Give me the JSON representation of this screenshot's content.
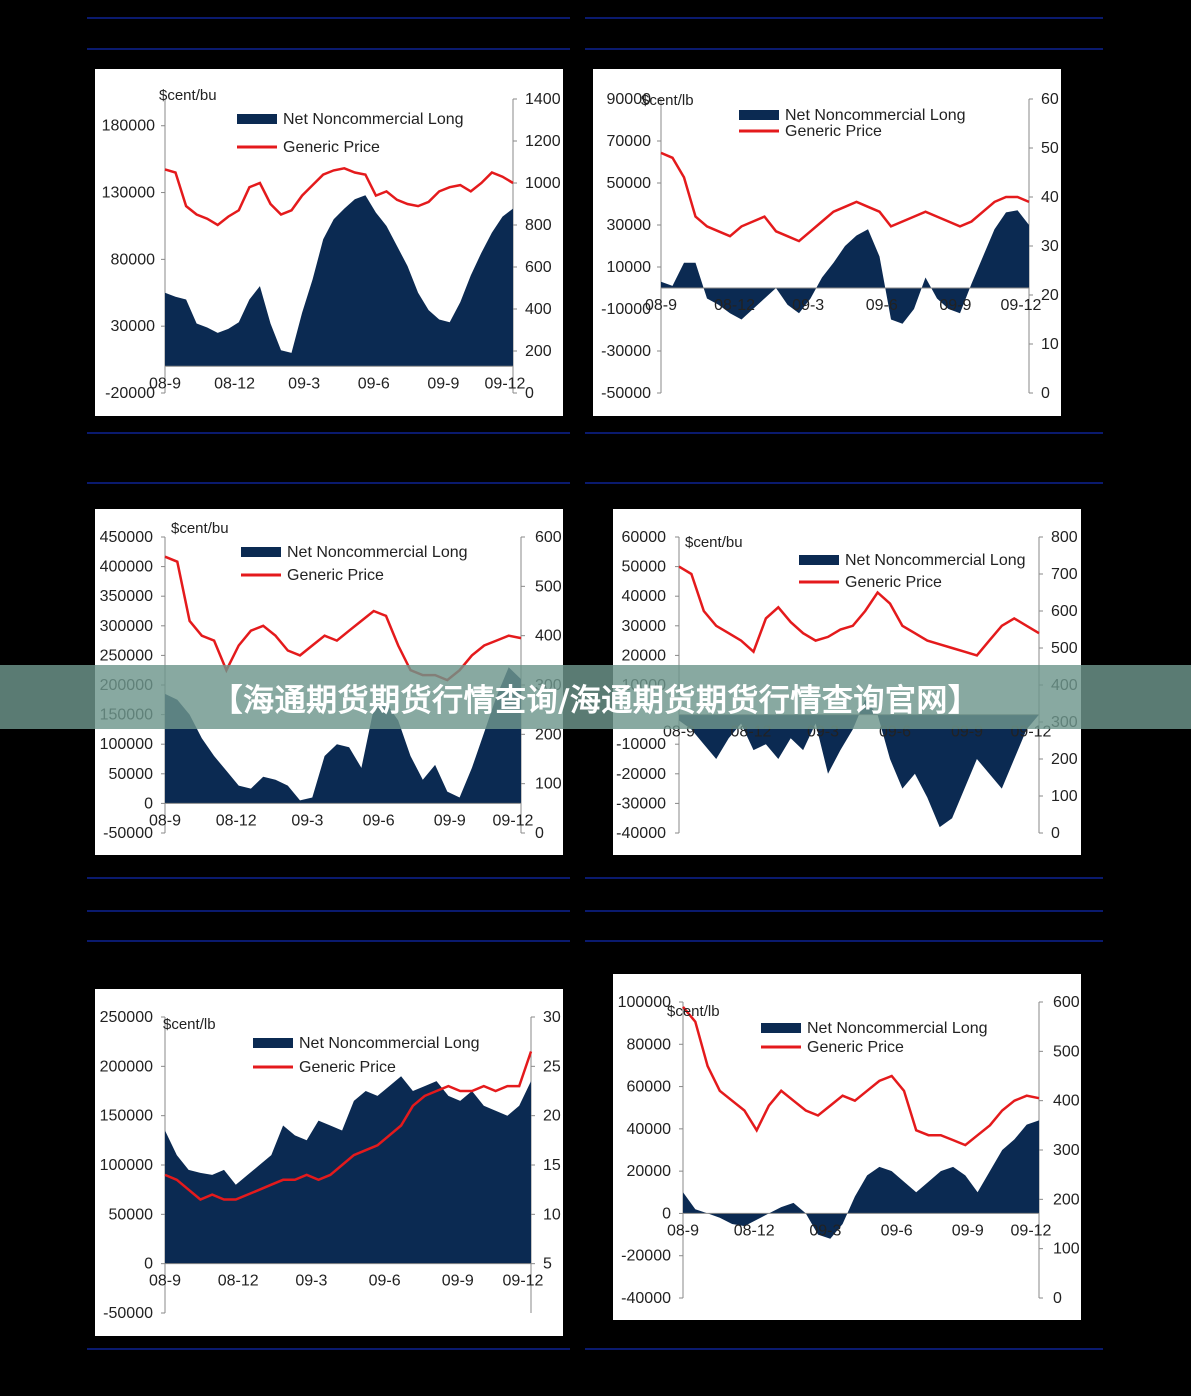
{
  "banner": {
    "title": "【海通期货期货行情查询/海通期货期货行情查询官网】"
  },
  "colors": {
    "area": "#0b2a52",
    "line": "#e41a1c",
    "axis": "#888888",
    "text": "#222222",
    "background": "#000000",
    "rule": "#0a1a6e"
  },
  "chart_data": [
    {
      "type": "area",
      "unit_label": "$cent/bu",
      "legend": [
        "Net Noncommercial Long",
        "Generic Price"
      ],
      "x_tick_labels": [
        "08-9",
        "08-12",
        "09-3",
        "09-6",
        "09-9",
        "09-12"
      ],
      "y_left": {
        "ticks": [
          "-20000",
          "30000",
          "80000",
          "130000",
          "180000"
        ],
        "range": [
          -20000,
          200000
        ]
      },
      "y_right": {
        "ticks": [
          "0",
          "200",
          "400",
          "600",
          "800",
          "1000",
          "1200",
          "1400"
        ],
        "range": [
          0,
          1400
        ]
      },
      "series": [
        {
          "name": "Net Noncommercial Long",
          "kind": "area",
          "values": [
            55000,
            52000,
            50000,
            32000,
            29000,
            25000,
            28000,
            33000,
            50000,
            60000,
            32000,
            12000,
            10000,
            40000,
            65000,
            95000,
            110000,
            118000,
            125000,
            128000,
            115000,
            105000,
            90000,
            75000,
            55000,
            42000,
            35000,
            33000,
            48000,
            68000,
            85000,
            100000,
            112000,
            118000
          ]
        },
        {
          "name": "Generic Price",
          "kind": "line",
          "values": [
            1065,
            1050,
            890,
            850,
            830,
            800,
            840,
            870,
            980,
            1000,
            900,
            850,
            870,
            940,
            990,
            1040,
            1060,
            1070,
            1050,
            1040,
            940,
            960,
            920,
            900,
            890,
            910,
            960,
            980,
            990,
            960,
            1000,
            1050,
            1030,
            1000
          ]
        }
      ]
    },
    {
      "type": "area",
      "unit_label": "$cent/lb",
      "legend": [
        "Net Noncommercial Long",
        "Generic Price"
      ],
      "x_tick_labels": [
        "08-9",
        "08-12",
        "09-3",
        "09-6",
        "09-9",
        "09-12"
      ],
      "y_left": {
        "ticks": [
          "-50000",
          "-30000",
          "-10000",
          "10000",
          "30000",
          "50000",
          "70000",
          "90000"
        ],
        "range": [
          -50000,
          90000
        ]
      },
      "y_right": {
        "ticks": [
          "0",
          "10",
          "20",
          "30",
          "40",
          "50",
          "60"
        ],
        "range": [
          0,
          60
        ]
      },
      "series": [
        {
          "name": "Net Noncommercial Long",
          "kind": "area",
          "values": [
            3000,
            1000,
            12000,
            12000,
            -5000,
            -8000,
            -12000,
            -15000,
            -10000,
            -5000,
            0,
            -8000,
            -12000,
            -5000,
            5000,
            12000,
            20000,
            25000,
            28000,
            15000,
            -15000,
            -17000,
            -10000,
            5000,
            -5000,
            -10000,
            -12000,
            2000,
            15000,
            28000,
            36000,
            37000,
            30000
          ]
        },
        {
          "name": "Generic Price",
          "kind": "line",
          "values": [
            49,
            48,
            44,
            36,
            34,
            33,
            32,
            34,
            35,
            36,
            33,
            32,
            31,
            33,
            35,
            37,
            38,
            39,
            38,
            37,
            34,
            35,
            36,
            37,
            36,
            35,
            34,
            35,
            37,
            39,
            40,
            40,
            39
          ]
        }
      ]
    },
    {
      "type": "area",
      "unit_label": "$cent/bu",
      "legend": [
        "Net Noncommercial Long",
        "Generic Price"
      ],
      "x_tick_labels": [
        "08-9",
        "08-12",
        "09-3",
        "09-6",
        "09-9",
        "09-12"
      ],
      "y_left": {
        "ticks": [
          "-50000",
          "0",
          "50000",
          "100000",
          "150000",
          "200000",
          "250000",
          "300000",
          "350000",
          "400000",
          "450000"
        ],
        "range": [
          -50000,
          450000
        ]
      },
      "y_right": {
        "ticks": [
          "0",
          "100",
          "200",
          "300",
          "400",
          "500",
          "600"
        ],
        "range": [
          0,
          600
        ]
      },
      "series": [
        {
          "name": "Net Noncommercial Long",
          "kind": "area",
          "values": [
            185000,
            175000,
            150000,
            110000,
            80000,
            55000,
            30000,
            25000,
            45000,
            40000,
            30000,
            5000,
            10000,
            80000,
            100000,
            95000,
            60000,
            160000,
            170000,
            140000,
            80000,
            40000,
            65000,
            20000,
            10000,
            60000,
            120000,
            180000,
            230000,
            210000
          ]
        },
        {
          "name": "Generic Price",
          "kind": "line",
          "values": [
            560,
            550,
            430,
            400,
            390,
            330,
            380,
            410,
            420,
            400,
            370,
            360,
            380,
            400,
            390,
            410,
            430,
            450,
            440,
            380,
            330,
            320,
            320,
            310,
            330,
            360,
            380,
            390,
            400,
            395
          ]
        }
      ]
    },
    {
      "type": "area",
      "unit_label": "$cent/bu",
      "legend": [
        "Net Noncommercial Long",
        "Generic Price"
      ],
      "x_tick_labels": [
        "08-9",
        "08-12",
        "09-3",
        "09-6",
        "09-9",
        "09-12"
      ],
      "y_left": {
        "ticks": [
          "-40000",
          "-30000",
          "-20000",
          "-10000",
          "10000",
          "20000",
          "30000",
          "40000",
          "50000",
          "60000"
        ],
        "range": [
          -40000,
          60000
        ]
      },
      "y_right": {
        "ticks": [
          "0",
          "100",
          "200",
          "300",
          "400",
          "500",
          "600",
          "700",
          "800"
        ],
        "range": [
          0,
          800
        ]
      },
      "series": [
        {
          "name": "Net Noncommercial Long",
          "kind": "area",
          "values": [
            -2000,
            -5000,
            -10000,
            -15000,
            -8000,
            -3000,
            -12000,
            -10000,
            -15000,
            -8000,
            -12000,
            -3000,
            -20000,
            -12000,
            -5000,
            5000,
            0,
            -15000,
            -25000,
            -20000,
            -28000,
            -38000,
            -35000,
            -25000,
            -15000,
            -20000,
            -25000,
            -15000,
            -5000,
            0
          ]
        },
        {
          "name": "Generic Price",
          "kind": "line",
          "values": [
            720,
            700,
            600,
            560,
            540,
            520,
            490,
            580,
            610,
            570,
            540,
            520,
            530,
            550,
            560,
            600,
            650,
            620,
            560,
            540,
            520,
            510,
            500,
            490,
            480,
            520,
            560,
            580,
            560,
            540
          ]
        }
      ]
    },
    {
      "type": "area",
      "unit_label": "$cent/lb",
      "legend": [
        "Net Noncommercial Long",
        "Generic Price"
      ],
      "x_tick_labels": [
        "08-9",
        "08-12",
        "09-3",
        "09-6",
        "09-9",
        "09-12"
      ],
      "y_left": {
        "ticks": [
          "-50000",
          "0",
          "50000",
          "100000",
          "150000",
          "200000",
          "250000"
        ],
        "range": [
          -50000,
          250000
        ]
      },
      "y_right": {
        "ticks": [
          "5",
          "10",
          "15",
          "20",
          "25",
          "30"
        ],
        "range": [
          0,
          30
        ]
      },
      "series": [
        {
          "name": "Net Noncommercial Long",
          "kind": "area",
          "values": [
            135000,
            110000,
            95000,
            92000,
            90000,
            95000,
            80000,
            90000,
            100000,
            110000,
            140000,
            130000,
            125000,
            145000,
            140000,
            135000,
            165000,
            175000,
            170000,
            180000,
            190000,
            175000,
            180000,
            185000,
            170000,
            165000,
            175000,
            160000,
            155000,
            150000,
            160000,
            185000
          ]
        },
        {
          "name": "Generic Price",
          "kind": "line",
          "values": [
            14,
            13.5,
            12.5,
            11.5,
            12,
            11.5,
            11.5,
            12,
            12.5,
            13,
            13.5,
            13.5,
            14,
            13.5,
            14,
            15,
            16,
            16.5,
            17,
            18,
            19,
            21,
            22,
            22.5,
            23,
            22.5,
            22.5,
            23,
            22.5,
            23,
            23,
            26.5
          ]
        }
      ]
    },
    {
      "type": "area",
      "unit_label": "$cent/lb",
      "legend": [
        "Net Noncommercial Long",
        "Generic Price"
      ],
      "x_tick_labels": [
        "08-9",
        "08-12",
        "09-3",
        "09-6",
        "09-9",
        "09-12"
      ],
      "y_left": {
        "ticks": [
          "-40000",
          "-20000",
          "0",
          "20000",
          "40000",
          "60000",
          "80000",
          "100000"
        ],
        "range": [
          -40000,
          100000
        ]
      },
      "y_right": {
        "ticks": [
          "0",
          "100",
          "200",
          "300",
          "400",
          "500",
          "600"
        ],
        "range": [
          0,
          600
        ]
      },
      "series": [
        {
          "name": "Net Noncommercial Long",
          "kind": "area",
          "values": [
            10000,
            2000,
            0,
            -2000,
            -5000,
            -6000,
            -3000,
            0,
            3000,
            5000,
            0,
            -10000,
            -12000,
            -5000,
            8000,
            18000,
            22000,
            20000,
            15000,
            10000,
            15000,
            20000,
            22000,
            18000,
            10000,
            20000,
            30000,
            35000,
            42000,
            44000
          ]
        },
        {
          "name": "Generic Price",
          "kind": "line",
          "values": [
            590,
            560,
            470,
            420,
            400,
            380,
            340,
            390,
            420,
            400,
            380,
            370,
            390,
            410,
            400,
            420,
            440,
            450,
            420,
            340,
            330,
            330,
            320,
            310,
            330,
            350,
            380,
            400,
            410,
            405
          ]
        }
      ]
    }
  ]
}
